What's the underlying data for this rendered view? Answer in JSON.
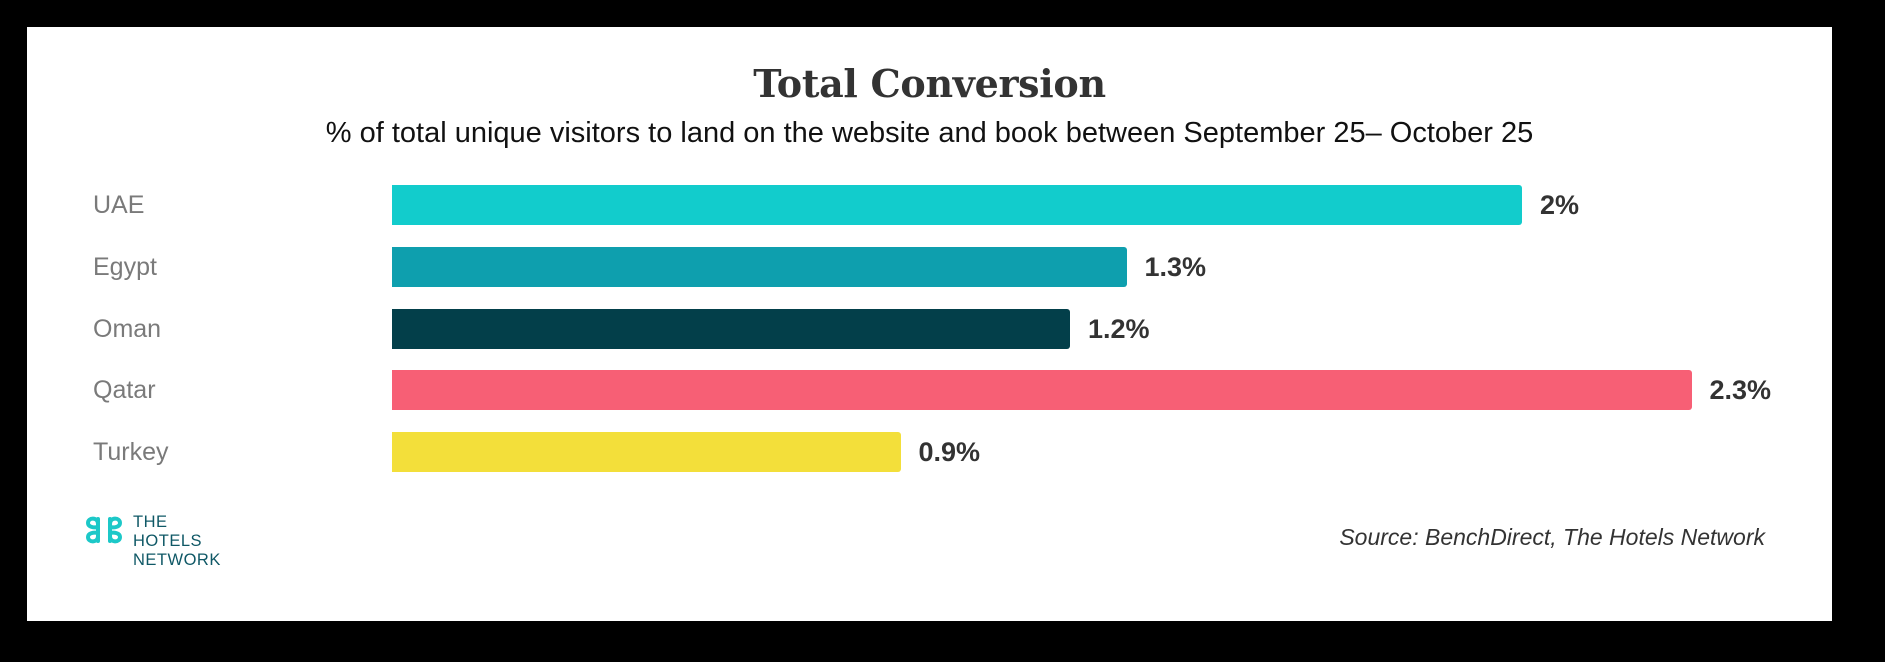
{
  "chart_data": {
    "type": "bar",
    "orientation": "horizontal",
    "title": "Total Conversion",
    "subtitle": "% of total unique visitors to land on the website and book between September 25– October 25",
    "categories": [
      "UAE",
      "Egypt",
      "Oman",
      "Qatar",
      "Turkey"
    ],
    "values": [
      2,
      1.3,
      1.2,
      2.3,
      0.9
    ],
    "value_labels": [
      "2%",
      "1.3%",
      "1.2%",
      "2.3%",
      "0.9%"
    ],
    "colors": [
      "#12cccc",
      "#0e9fae",
      "#033f4a",
      "#f75f75",
      "#f3df3a"
    ],
    "xlabel": "",
    "ylabel": "",
    "grid": false,
    "legend": false,
    "unit": "%"
  },
  "footer": {
    "logo": {
      "icon": "hotels-network-logo-icon",
      "lines": [
        "THE",
        "HOTELS",
        "NETWORK"
      ]
    },
    "source": "Source: BenchDirect, The Hotels Network"
  }
}
